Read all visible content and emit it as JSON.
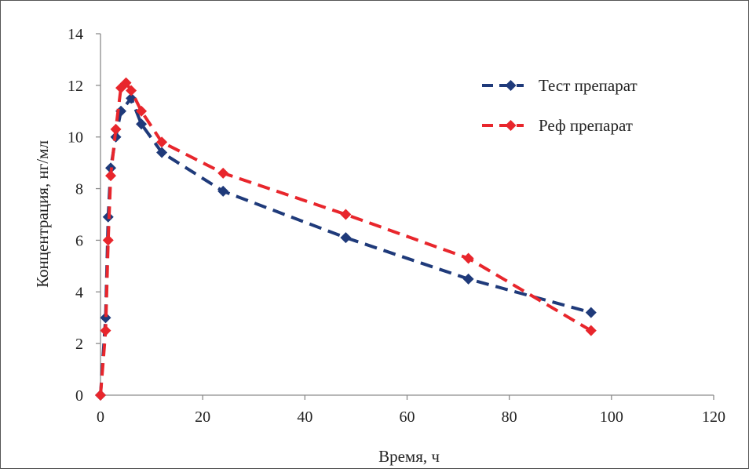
{
  "chart_data": {
    "type": "line",
    "xlabel": "Время, ч",
    "ylabel": "Концентрация, нг/мл",
    "xlim": [
      0,
      120
    ],
    "ylim": [
      0,
      14
    ],
    "x_ticks": [
      0,
      20,
      40,
      60,
      80,
      100,
      120
    ],
    "y_ticks": [
      0,
      2,
      4,
      6,
      8,
      10,
      12,
      14
    ],
    "grid": false,
    "legend_position": "top-right",
    "series": [
      {
        "name": "Тест препарат",
        "color": "#1f3a7a",
        "line_style": "dashed",
        "marker": "diamond",
        "points": [
          {
            "x": 0,
            "y": 0
          },
          {
            "x": 1,
            "y": 3.0
          },
          {
            "x": 1.5,
            "y": 6.9
          },
          {
            "x": 2,
            "y": 8.8
          },
          {
            "x": 3,
            "y": 10.0
          },
          {
            "x": 4,
            "y": 11.0
          },
          {
            "x": 6,
            "y": 11.5
          },
          {
            "x": 8,
            "y": 10.5
          },
          {
            "x": 12,
            "y": 9.4
          },
          {
            "x": 24,
            "y": 7.9
          },
          {
            "x": 48,
            "y": 6.1
          },
          {
            "x": 72,
            "y": 4.5
          },
          {
            "x": 96,
            "y": 3.2
          }
        ]
      },
      {
        "name": "Реф препарат",
        "color": "#e8262c",
        "line_style": "dashed",
        "marker": "diamond",
        "points": [
          {
            "x": 0,
            "y": 0
          },
          {
            "x": 1,
            "y": 2.5
          },
          {
            "x": 1.5,
            "y": 6.0
          },
          {
            "x": 2,
            "y": 8.5
          },
          {
            "x": 3,
            "y": 10.3
          },
          {
            "x": 4,
            "y": 11.9
          },
          {
            "x": 5,
            "y": 12.1
          },
          {
            "x": 6,
            "y": 11.8
          },
          {
            "x": 8,
            "y": 11.0
          },
          {
            "x": 12,
            "y": 9.8
          },
          {
            "x": 24,
            "y": 8.6
          },
          {
            "x": 48,
            "y": 7.0
          },
          {
            "x": 72,
            "y": 5.3
          },
          {
            "x": 96,
            "y": 2.5
          }
        ]
      }
    ]
  }
}
